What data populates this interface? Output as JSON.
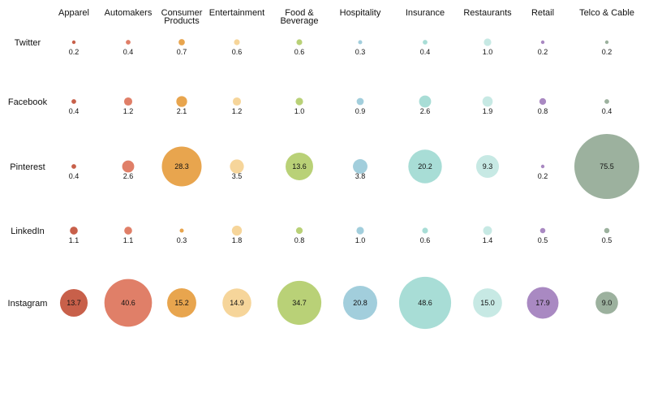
{
  "chart_data": {
    "type": "bubble-grid",
    "title": "",
    "columns": [
      {
        "label": [
          "Apparel"
        ],
        "color": "#c8604a"
      },
      {
        "label": [
          "Automakers"
        ],
        "color": "#e07f68"
      },
      {
        "label": [
          "Consumer",
          "Products"
        ],
        "color": "#e8a54e"
      },
      {
        "label": [
          "Entertainment"
        ],
        "color": "#f6d59a"
      },
      {
        "label": [
          "Food &",
          "Beverage"
        ],
        "color": "#b9d177"
      },
      {
        "label": [
          "Hospitality"
        ],
        "color": "#a2cedc"
      },
      {
        "label": [
          "Insurance"
        ],
        "color": "#a8ddd6"
      },
      {
        "label": [
          "Restaurants"
        ],
        "color": "#c7e9e4"
      },
      {
        "label": [
          "Retail"
        ],
        "color": "#a989c2"
      },
      {
        "label": [
          "Telco & Cable"
        ],
        "color": "#9cb19e"
      }
    ],
    "rows": [
      "Twitter",
      "Facebook",
      "Pinterest",
      "LinkedIn",
      "Instagram"
    ],
    "values": [
      [
        0.2,
        0.4,
        0.7,
        0.6,
        0.6,
        0.3,
        0.4,
        1.0,
        0.2,
        0.2
      ],
      [
        0.4,
        1.2,
        2.1,
        1.2,
        1.0,
        0.9,
        2.6,
        1.9,
        0.8,
        0.4
      ],
      [
        0.4,
        2.6,
        28.3,
        3.5,
        13.6,
        3.8,
        20.2,
        9.3,
        0.2,
        75.5
      ],
      [
        1.1,
        1.1,
        0.3,
        1.8,
        0.8,
        1.0,
        0.6,
        1.4,
        0.5,
        0.5
      ],
      [
        13.7,
        40.6,
        15.2,
        14.9,
        34.7,
        20.8,
        48.6,
        15.0,
        17.9,
        9.0
      ]
    ],
    "value_labels": [
      [
        "0.2",
        "0.4",
        "0.7",
        "0.6",
        "0.6",
        "0.3",
        "0.4",
        "1.0",
        "0.2",
        "0.2"
      ],
      [
        "0.4",
        "1.2",
        "2.1",
        "1.2",
        "1.0",
        "0.9",
        "2.6",
        "1.9",
        "0.8",
        "0.4"
      ],
      [
        "0.4",
        "2.6",
        "28.3",
        "3.5",
        "13.6",
        "3.8",
        "20.2",
        "9.3",
        "0.2",
        "75.5"
      ],
      [
        "1.1",
        "1.1",
        "0.3",
        "1.8",
        "0.8",
        "1.0",
        "0.6",
        "1.4",
        "0.5",
        "0.5"
      ],
      [
        "13.7",
        "40.6",
        "15.2",
        "14.9",
        "34.7",
        "20.8",
        "48.6",
        "15.0",
        "17.9",
        "9.0"
      ]
    ],
    "size_encoding": "area",
    "grid": false,
    "legend": "none"
  }
}
